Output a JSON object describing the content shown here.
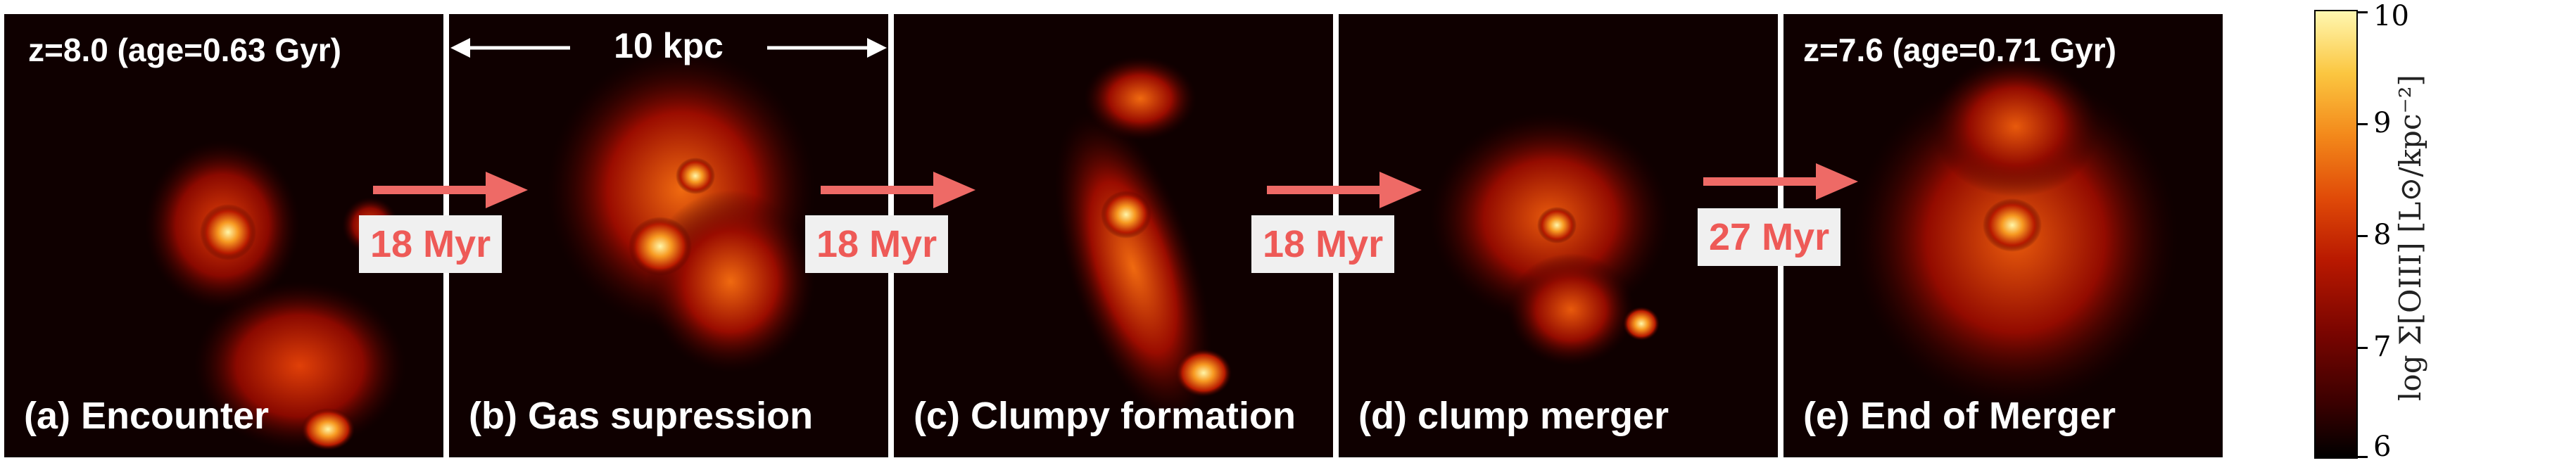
{
  "panels": [
    {
      "label": "(a) Encounter"
    },
    {
      "label": "(b) Gas supression"
    },
    {
      "label": "(c) Clumpy formation"
    },
    {
      "label": "(d) clump merger"
    },
    {
      "label": "(e) End of Merger"
    }
  ],
  "redshift_labels": {
    "start": "z=8.0 (age=0.63 Gyr)",
    "end": "z=7.6 (age=0.71 Gyr)"
  },
  "scale_bar": {
    "label": "10 kpc"
  },
  "time_steps": [
    "18 Myr",
    "18 Myr",
    "18 Myr",
    "27 Myr"
  ],
  "colorbar": {
    "label": "log Σ[OIII] [L⊙/kpc⁻²]",
    "ticks": [
      "10",
      "9",
      "8",
      "7",
      "6"
    ],
    "range": [
      6,
      10
    ]
  },
  "colors": {
    "panel_bg": "#0f0000",
    "time_text": "#ee5a57",
    "time_box": "#f0f0f0",
    "arrow": "#ee6a66"
  }
}
